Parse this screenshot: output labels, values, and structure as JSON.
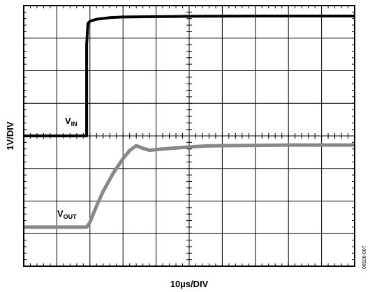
{
  "chart_data": {
    "type": "line",
    "title": "",
    "xlabel": "10µs/DIV",
    "ylabel": "1V/DIV",
    "x_divisions": 10,
    "y_divisions": 8,
    "xlim": [
      0,
      10
    ],
    "ylim": [
      0,
      8
    ],
    "grid": true,
    "figure_id": "06526-007",
    "series": [
      {
        "name": "VIN",
        "label_main": "V",
        "label_sub": "IN",
        "color": "#000000",
        "x": [
          0,
          1.9,
          1.9,
          1.94,
          2.0,
          2.2,
          2.6,
          3.0,
          4.0,
          5.0,
          7.0,
          10.0
        ],
        "y": [
          4.0,
          4.0,
          6.8,
          7.45,
          7.52,
          7.58,
          7.63,
          7.65,
          7.66,
          7.67,
          7.68,
          7.68
        ]
      },
      {
        "name": "VOUT",
        "label_main": "V",
        "label_sub": "OUT",
        "color": "#888888",
        "x": [
          0,
          1.9,
          2.0,
          2.2,
          2.4,
          2.7,
          3.0,
          3.2,
          3.4,
          3.6,
          3.8,
          4.2,
          4.6,
          5.0,
          5.5,
          6.0,
          7.0,
          8.0,
          9.0,
          10.0
        ],
        "y": [
          1.2,
          1.2,
          1.35,
          1.85,
          2.3,
          2.85,
          3.3,
          3.55,
          3.7,
          3.62,
          3.56,
          3.6,
          3.63,
          3.66,
          3.69,
          3.7,
          3.71,
          3.72,
          3.72,
          3.72
        ]
      }
    ]
  }
}
